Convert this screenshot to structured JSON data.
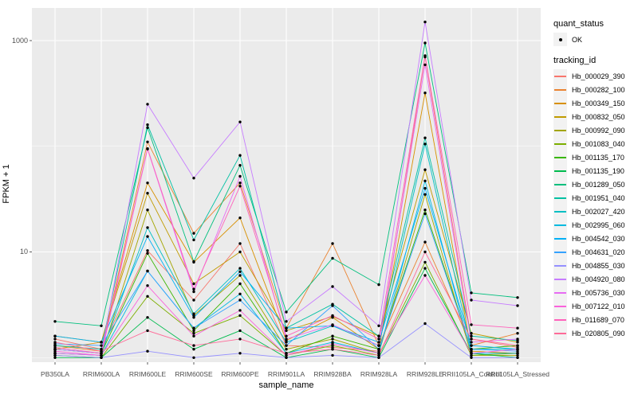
{
  "legend": {
    "quant_title": "quant_status",
    "quant_items": [
      {
        "label": "OK",
        "symbol": "point",
        "color": "#000000"
      }
    ],
    "tracking_title": "tracking_id"
  },
  "chart_data": {
    "type": "line",
    "title": "",
    "xlabel": "sample_name",
    "ylabel": "FPKM + 1",
    "y_scale": "log10",
    "y_major_ticks": [
      10,
      1000
    ],
    "y_minor_gridlines": [
      1,
      100
    ],
    "ylim_log10": [
      -0.04,
      3.31
    ],
    "grid": true,
    "legend_position": "right",
    "panel_bg": "#ebebeb",
    "grid_color": "#ffffff",
    "point_color": "#000000",
    "tick_label_color": "#4d4d4d",
    "categories": [
      "PB350LA",
      "RRIM600LA",
      "RRIM600LE",
      "RRIM600SE",
      "RRIM600PE",
      "RRIM901LA",
      "RRIM928BA",
      "RRIM928LA",
      "RRIM928LE",
      "RRII105LA_Control",
      "RRII105LA_Stressed"
    ],
    "series": [
      {
        "name": "Hb_000029_390",
        "color": "#F8766D",
        "values": [
          1.5,
          1.2,
          10.3,
          3.5,
          12,
          1.3,
          1.25,
          1.15,
          700,
          1.5,
          1.25
        ]
      },
      {
        "name": "Hb_000282_100",
        "color": "#EA8331",
        "values": [
          1.3,
          1.15,
          110,
          15,
          45,
          1.9,
          12,
          1.3,
          12.4,
          1.3,
          1.7
        ]
      },
      {
        "name": "Hb_000349_150",
        "color": "#D89000",
        "values": [
          1.2,
          1.4,
          45,
          8,
          21,
          1.45,
          2.4,
          1.2,
          320,
          1.15,
          1.1
        ]
      },
      {
        "name": "Hb_000832_050",
        "color": "#C09B00",
        "values": [
          1.6,
          1.4,
          36,
          5,
          10,
          1.8,
          2.45,
          1.6,
          60,
          1.7,
          1.4
        ]
      },
      {
        "name": "Hb_000992_090",
        "color": "#A3A500",
        "values": [
          1.1,
          1.05,
          25,
          2.5,
          6,
          1.2,
          1.5,
          1.1,
          35,
          1.05,
          1.05
        ]
      },
      {
        "name": "Hb_001083_040",
        "color": "#7CAE00",
        "values": [
          1.05,
          1.0,
          3.8,
          1.7,
          2.5,
          1.05,
          1.3,
          1.05,
          8,
          1.05,
          1.1
        ]
      },
      {
        "name": "Hb_001135_170",
        "color": "#39B600",
        "values": [
          1.2,
          1.1,
          9.7,
          1.8,
          5,
          1.1,
          1.6,
          1.2,
          25,
          1.2,
          1.3
        ]
      },
      {
        "name": "Hb_001135_190",
        "color": "#00BB4E",
        "values": [
          1.0,
          1.0,
          2.4,
          1.2,
          1.8,
          1.0,
          1.2,
          1.0,
          7,
          1.1,
          1.0
        ]
      },
      {
        "name": "Hb_001289_050",
        "color": "#00BF7D",
        "values": [
          2.2,
          2.0,
          150,
          8.1,
          66,
          2.7,
          8.7,
          4.9,
          950,
          4.1,
          3.7
        ]
      },
      {
        "name": "Hb_001951_040",
        "color": "#00C1A3",
        "values": [
          1.3,
          1.2,
          160,
          13,
          82,
          1.9,
          3.2,
          1.6,
          120,
          1.6,
          1.45
        ]
      },
      {
        "name": "Hb_002027_420",
        "color": "#00BFC4",
        "values": [
          1.2,
          1.1,
          17,
          2.6,
          7,
          1.4,
          2.0,
          1.3,
          105,
          1.2,
          1.2
        ]
      },
      {
        "name": "Hb_002995_060",
        "color": "#00BAE0",
        "values": [
          1.1,
          1.05,
          6.6,
          1.9,
          4,
          1.1,
          1.4,
          1.1,
          47,
          1.1,
          1.1
        ]
      },
      {
        "name": "Hb_004542_030",
        "color": "#00B0F6",
        "values": [
          1.6,
          1.4,
          14,
          2.4,
          6.5,
          1.9,
          2.0,
          1.4,
          40,
          1.3,
          1.2
        ]
      },
      {
        "name": "Hb_004631_020",
        "color": "#35A2FF",
        "values": [
          1.35,
          1.3,
          6.6,
          1.9,
          3.5,
          1.3,
          3.1,
          1.2,
          23,
          1.2,
          1.15
        ]
      },
      {
        "name": "Hb_004855_030",
        "color": "#9590FF",
        "values": [
          1.05,
          1.0,
          1.15,
          1.0,
          1.1,
          1.0,
          1.05,
          1.0,
          2.1,
          1.0,
          1.0
        ]
      },
      {
        "name": "Hb_004920_080",
        "color": "#C77CFF",
        "values": [
          1.2,
          1.1,
          250,
          50,
          170,
          2.2,
          4.7,
          2.0,
          1500,
          3.5,
          3.1
        ]
      },
      {
        "name": "Hb_005736_030",
        "color": "#E76BF3",
        "values": [
          1.1,
          1.05,
          94,
          4.2,
          52,
          1.5,
          2.05,
          1.3,
          590,
          1.4,
          1.5
        ]
      },
      {
        "name": "Hb_007122_010",
        "color": "#FA62DB",
        "values": [
          1.15,
          1.05,
          4.8,
          1.6,
          2.8,
          1.05,
          1.35,
          1.1,
          6,
          1.1,
          1.2
        ]
      },
      {
        "name": "Hb_011689_070",
        "color": "#FF62BC",
        "values": [
          1.25,
          1.1,
          95,
          4.45,
          42,
          1.6,
          2.5,
          1.5,
          720,
          2.05,
          1.9
        ]
      },
      {
        "name": "Hb_020805_090",
        "color": "#FF6A98",
        "values": [
          1.4,
          1.15,
          1.8,
          1.3,
          1.5,
          1.1,
          1.2,
          1.05,
          10,
          1.5,
          1.3
        ]
      }
    ]
  }
}
